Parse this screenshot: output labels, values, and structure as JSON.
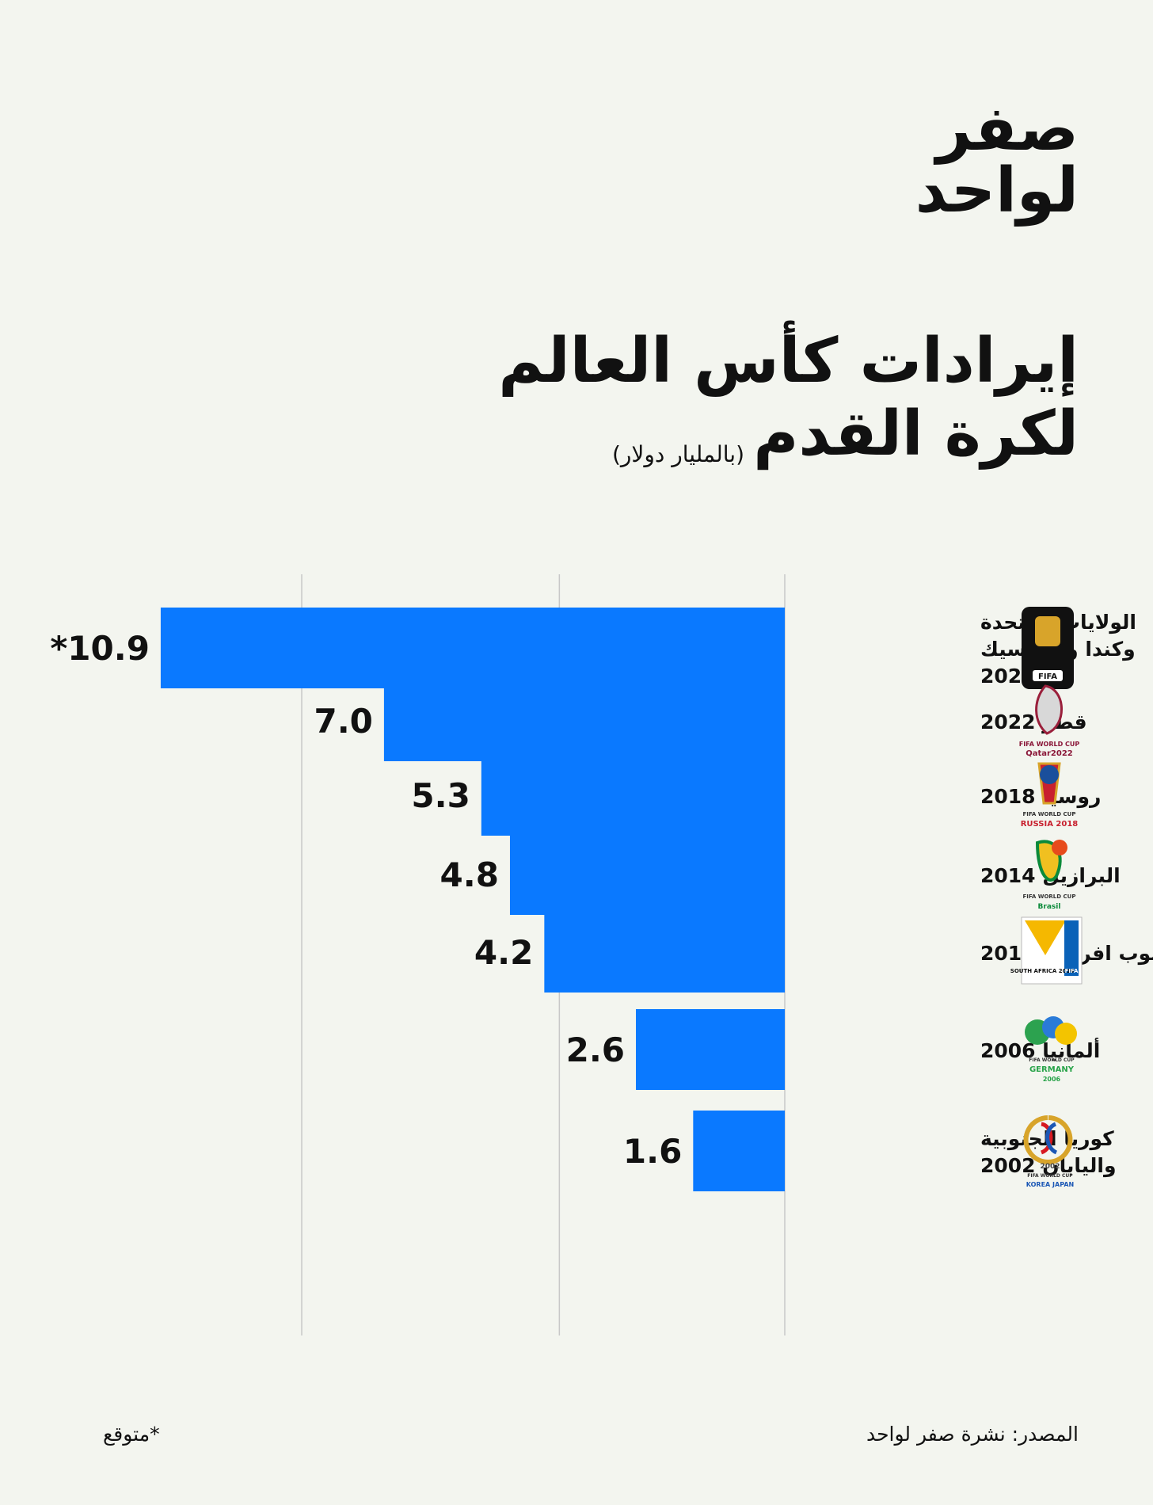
{
  "brand": {
    "line1": "صفر",
    "line2": "لواحد"
  },
  "header": {
    "title_line1": "إيرادات كأس العالم",
    "title_line2": "لكرة القدم",
    "subtitle": "(بالمليار دولار)"
  },
  "footer": {
    "source": "المصدر: نشرة صفر لواحد",
    "note": "*متوقع"
  },
  "colors": {
    "background": "#f3f5ef",
    "bar": "#0a79ff",
    "text": "#111111",
    "grid": "#c8c8c8"
  },
  "chart_data": {
    "type": "bar",
    "orientation": "horizontal",
    "title": "إيرادات كأس العالم لكرة القدم",
    "subtitle": "(بالمليار دولار)",
    "grid": true,
    "categories": [
      "الولايات المتحدة وكندا والمكسيك 2026",
      "قطر 2022",
      "روسيا 2018",
      "البرازيل 2014",
      "جنوب افريقيا 2010",
      "ألمانيا 2006",
      "كوريا الجنوبية واليابان 2002"
    ],
    "category_lines": [
      [
        "الولايات المتحدة",
        "وكندا والمكسيك",
        "2026"
      ],
      [
        "قطر 2022"
      ],
      [
        "روسيا 2018"
      ],
      [
        "البرازيل 2014"
      ],
      [
        "جنوب افريقيا 2010"
      ],
      [
        "ألمانيا 2006"
      ],
      [
        "كوريا الجنوبية",
        "واليابان 2002"
      ]
    ],
    "values": [
      10.9,
      7.0,
      5.3,
      4.8,
      4.2,
      2.6,
      1.6
    ],
    "value_labels": [
      "*10.9",
      "7.0",
      "5.3",
      "4.8",
      "4.2",
      "2.6",
      "1.6"
    ],
    "xlim": [
      0,
      12
    ],
    "logo_text": [
      [
        "FIFA"
      ],
      [
        "FIFA WORLD CUP",
        "Qatar2022"
      ],
      [
        "FIFA WORLD CUP",
        "RUSSIA 2018"
      ],
      [
        "FIFA WORLD CUP",
        "Brasil"
      ],
      [
        "SOUTH AFRICA 2010",
        "FIFA"
      ],
      [
        "FIFA WORLD CUP",
        "GERMANY",
        "2006"
      ],
      [
        "2002",
        "FIFA WORLD CUP",
        "KOREA JAPAN"
      ]
    ]
  }
}
